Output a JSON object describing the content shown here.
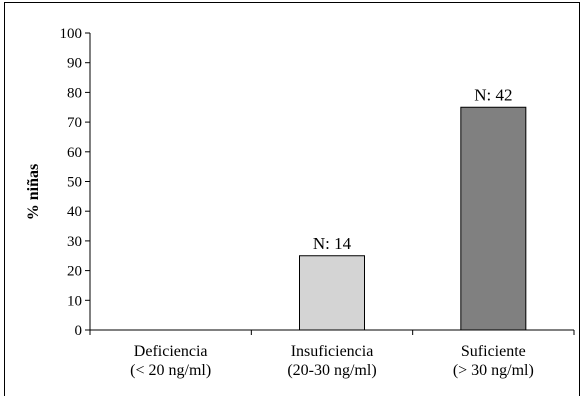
{
  "chart_data": {
    "type": "bar",
    "categories": [
      [
        "Deficiencia",
        "(< 20 ng/ml)"
      ],
      [
        "Insuficiencia",
        "(20-30 ng/ml)"
      ],
      [
        "Suficiente",
        "(> 30 ng/ml)"
      ]
    ],
    "values": [
      0,
      25,
      75
    ],
    "data_labels": [
      "",
      "N: 14",
      "N: 42"
    ],
    "bar_colors": [
      "#ffffff",
      "#d4d4d4",
      "#808080"
    ],
    "title": "",
    "xlabel": "",
    "ylabel": "% niñas",
    "ylim": [
      0,
      100
    ],
    "yticks": [
      0,
      10,
      20,
      30,
      40,
      50,
      60,
      70,
      80,
      90,
      100
    ],
    "grid": false,
    "legend": "none"
  }
}
